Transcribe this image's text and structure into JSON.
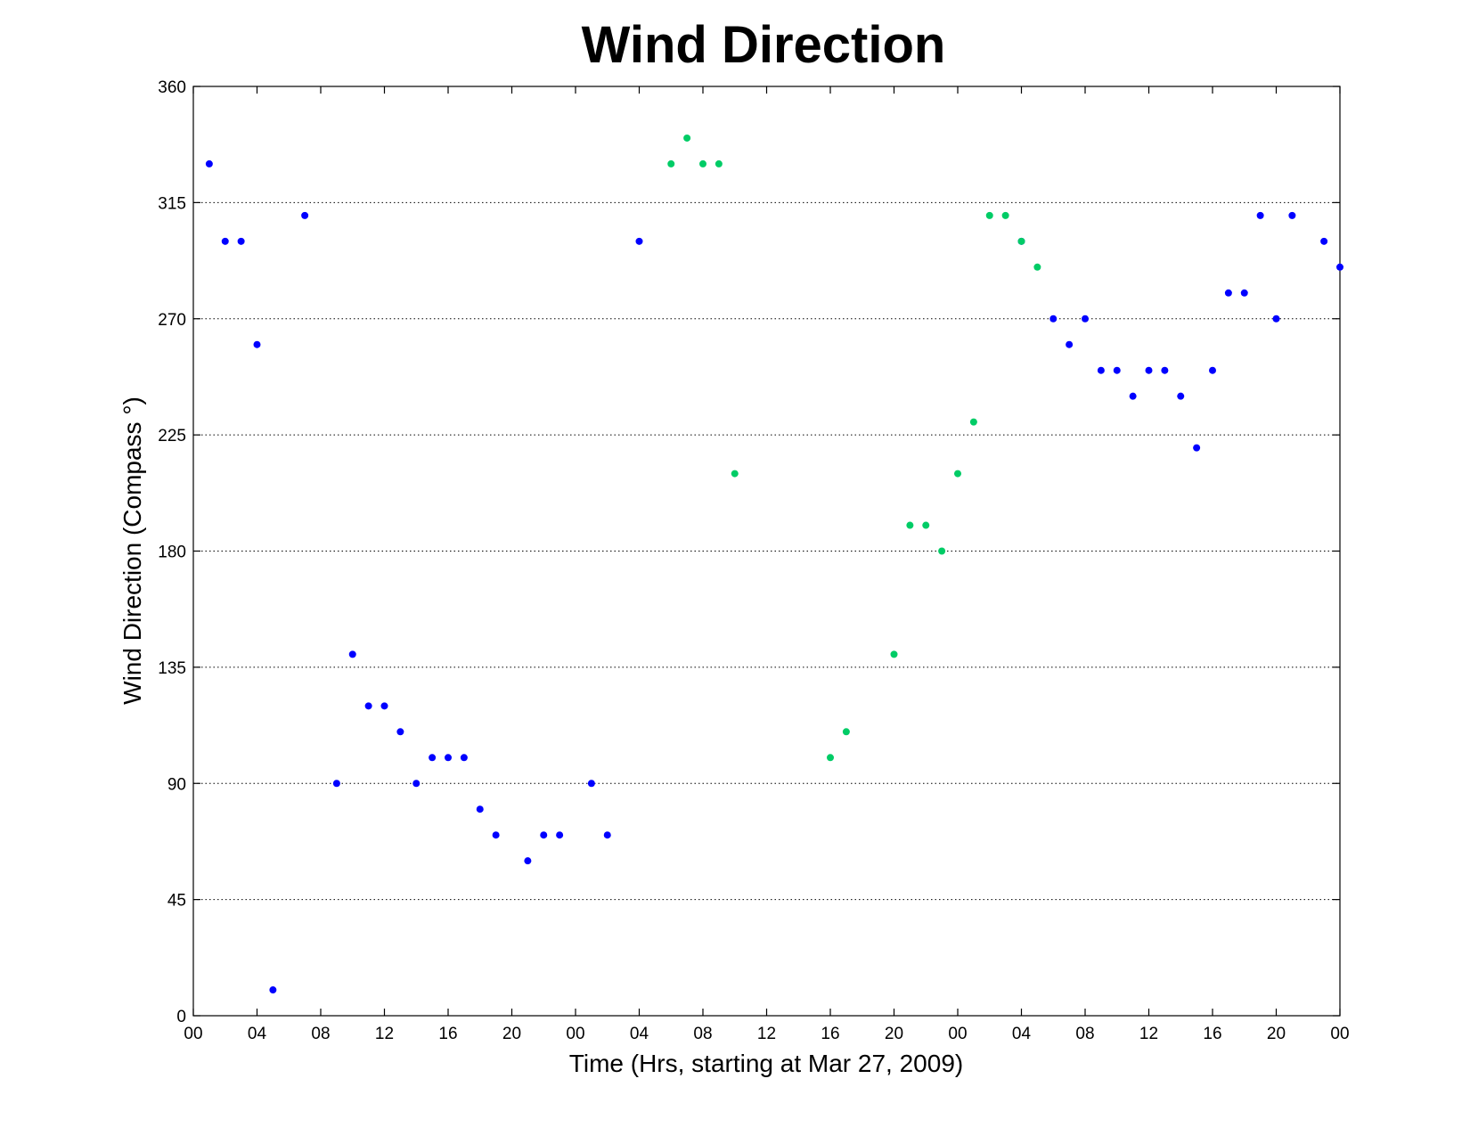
{
  "chart_data": {
    "type": "scatter",
    "title": "Wind Direction",
    "xlabel": "Time (Hrs, starting at Mar 27, 2009)",
    "ylabel": "Wind Direction (Compass  °)",
    "x_unit": "hours",
    "xlim": [
      0,
      72
    ],
    "ylim": [
      0,
      360
    ],
    "x_ticks": [
      0,
      4,
      8,
      12,
      16,
      20,
      24,
      28,
      32,
      36,
      40,
      44,
      48,
      52,
      56,
      60,
      64,
      68,
      72
    ],
    "x_tick_labels": [
      "00",
      "04",
      "08",
      "12",
      "16",
      "20",
      "00",
      "04",
      "08",
      "12",
      "16",
      "20",
      "00",
      "04",
      "08",
      "12",
      "16",
      "20",
      "00"
    ],
    "y_ticks": [
      0,
      45,
      90,
      135,
      180,
      225,
      270,
      315,
      360
    ],
    "y_tick_labels": [
      "0",
      "45",
      "90",
      "135",
      "180",
      "225",
      "270",
      "315",
      "360"
    ],
    "grid": "y-dotted",
    "series": [
      {
        "color": "#0000ff",
        "points": [
          [
            1,
            330
          ],
          [
            2,
            300
          ],
          [
            3,
            300
          ],
          [
            4,
            260
          ],
          [
            5,
            10
          ],
          [
            7,
            310
          ],
          [
            9,
            90
          ],
          [
            10,
            140
          ],
          [
            11,
            120
          ],
          [
            12,
            120
          ],
          [
            13,
            110
          ],
          [
            14,
            90
          ],
          [
            15,
            100
          ],
          [
            16,
            100
          ],
          [
            17,
            100
          ],
          [
            18,
            80
          ],
          [
            19,
            70
          ],
          [
            21,
            60
          ],
          [
            22,
            70
          ],
          [
            23,
            70
          ],
          [
            25,
            90
          ],
          [
            26,
            70
          ],
          [
            28,
            300
          ],
          [
            52,
            300
          ],
          [
            54,
            270
          ],
          [
            55,
            260
          ],
          [
            56,
            270
          ],
          [
            57,
            250
          ],
          [
            58,
            250
          ],
          [
            59,
            240
          ],
          [
            60,
            250
          ],
          [
            61,
            250
          ],
          [
            62,
            240
          ],
          [
            63,
            220
          ],
          [
            64,
            250
          ],
          [
            65,
            280
          ],
          [
            66,
            280
          ],
          [
            67,
            310
          ],
          [
            68,
            270
          ],
          [
            69,
            310
          ],
          [
            71,
            300
          ],
          [
            72,
            290
          ]
        ]
      },
      {
        "color": "#00cc66",
        "points": [
          [
            30,
            330
          ],
          [
            31,
            340
          ],
          [
            32,
            330
          ],
          [
            33,
            330
          ],
          [
            34,
            210
          ],
          [
            40,
            100
          ],
          [
            41,
            110
          ],
          [
            44,
            140
          ],
          [
            45,
            190
          ],
          [
            46,
            190
          ],
          [
            47,
            180
          ],
          [
            48,
            210
          ],
          [
            49,
            230
          ],
          [
            50,
            310
          ],
          [
            51,
            310
          ],
          [
            52,
            300
          ],
          [
            53,
            290
          ]
        ]
      }
    ]
  }
}
